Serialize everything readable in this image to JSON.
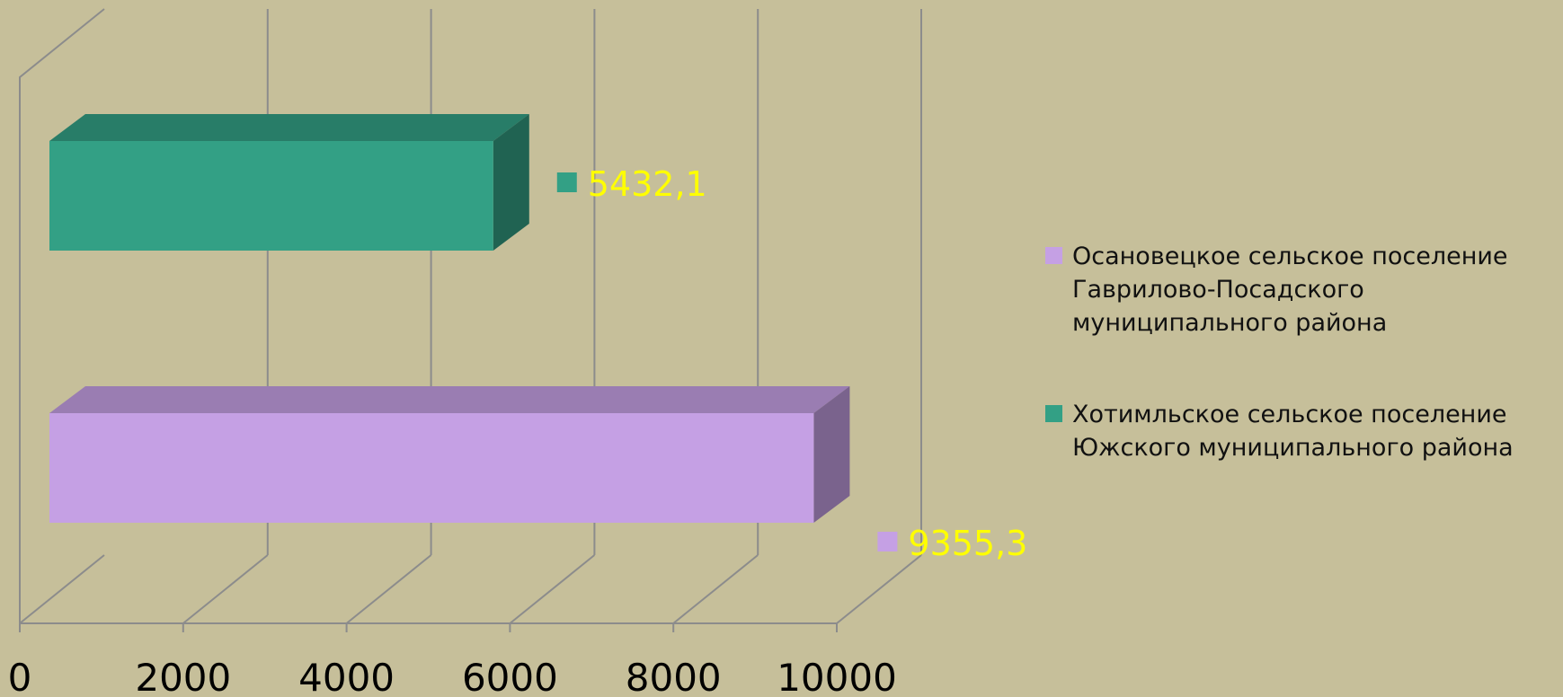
{
  "chart_data": {
    "type": "bar",
    "orientation": "horizontal",
    "style": "3d",
    "xlim": [
      0,
      10000
    ],
    "x_ticks": [
      0,
      2000,
      4000,
      6000,
      8000,
      10000
    ],
    "x_tick_labels": [
      "0",
      "2000",
      "4000",
      "6000",
      "8000",
      "10000"
    ],
    "grid": true,
    "legend_position": "right",
    "series": [
      {
        "name": "Осановецкое сельское поселение Гаврилово-Посадского муниципального района",
        "legend_lines": [
          "Осановецкое сельское поселение",
          "Гаврилово-Посадского",
          "муниципального района"
        ],
        "value": 9355.3,
        "label": "9355,3",
        "color": "#c5a0e4"
      },
      {
        "name": "Хотимльское сельское поселение Южского муниципального района",
        "legend_lines": [
          "Хотимльское сельское поселение",
          "Южского муниципального района"
        ],
        "value": 5432.1,
        "label": "5432,1",
        "color": "#33a085"
      }
    ],
    "data_label_color": "#ffff00"
  }
}
